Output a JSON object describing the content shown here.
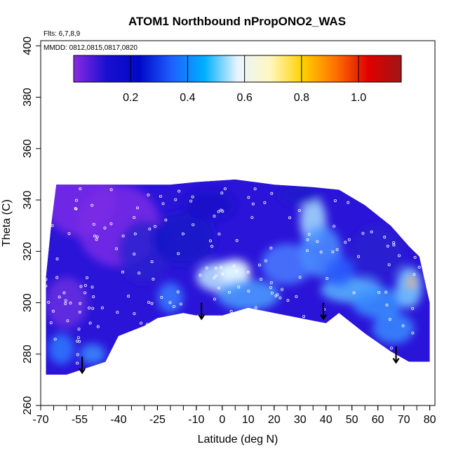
{
  "chart_data": {
    "type": "heatmap",
    "title": "ATOM1 Northbound nPropONO2_WAS",
    "note_flights": "Flts: 6,7,8,9",
    "note_dates": "MMDD: 0812,0815,0817,0820",
    "xlabel": "Latitude (deg N)",
    "ylabel": "Theta (C)",
    "xlim": [
      -70,
      82
    ],
    "ylim": [
      260,
      402
    ],
    "x_ticks": [
      -70,
      -55,
      -40,
      -25,
      -10,
      0,
      10,
      20,
      30,
      40,
      50,
      60,
      70,
      80
    ],
    "x_tick_labels": [
      "-70",
      "-55",
      "-40",
      "-25",
      "-10",
      "0",
      "10",
      "20",
      "30",
      "40",
      "50",
      "60",
      "70",
      "80"
    ],
    "y_ticks": [
      260,
      280,
      300,
      320,
      340,
      360,
      380,
      400
    ],
    "y_tick_labels": [
      "260",
      "280",
      "300",
      "320",
      "340",
      "360",
      "380",
      "400"
    ],
    "colorbar": {
      "range": [
        0.0,
        1.15
      ],
      "ticks": [
        0.2,
        0.4,
        0.6,
        0.8,
        1.0
      ],
      "tick_labels": [
        "0.2",
        "0.4",
        "0.6",
        "0.8",
        "1.0"
      ],
      "colors": [
        "#8a2be2",
        "#1a0fd0",
        "#0008c8",
        "#1e60ff",
        "#00b0ff",
        "#e8f4ff",
        "#fff7c0",
        "#ffd000",
        "#ff7000",
        "#e00000",
        "#a01515"
      ]
    },
    "top_boundary": [
      [
        -68,
        310
      ],
      [
        -66,
        330
      ],
      [
        -64,
        346
      ],
      [
        -45,
        346
      ],
      [
        -20,
        346
      ],
      [
        -10,
        347
      ],
      [
        5,
        348
      ],
      [
        20,
        346
      ],
      [
        35,
        345
      ],
      [
        45,
        344
      ],
      [
        55,
        338
      ],
      [
        65,
        330
      ],
      [
        72,
        322
      ],
      [
        76,
        318
      ],
      [
        80,
        300
      ]
    ],
    "bottom_boundary": [
      [
        -68,
        272
      ],
      [
        -60,
        272
      ],
      [
        -54,
        274
      ],
      [
        -45,
        277
      ],
      [
        -40,
        287
      ],
      [
        -30,
        291
      ],
      [
        -25,
        294
      ],
      [
        -15,
        296
      ],
      [
        -10,
        295
      ],
      [
        0,
        295
      ],
      [
        10,
        298
      ],
      [
        20,
        296
      ],
      [
        30,
        294
      ],
      [
        35,
        293
      ],
      [
        40,
        292
      ],
      [
        45,
        296
      ],
      [
        55,
        288
      ],
      [
        65,
        281
      ],
      [
        72,
        277
      ],
      [
        80,
        277
      ]
    ],
    "descent_arrows": [
      [
        -54,
        279
      ],
      [
        -8,
        300
      ],
      [
        39,
        300
      ],
      [
        67,
        283
      ]
    ]
  }
}
